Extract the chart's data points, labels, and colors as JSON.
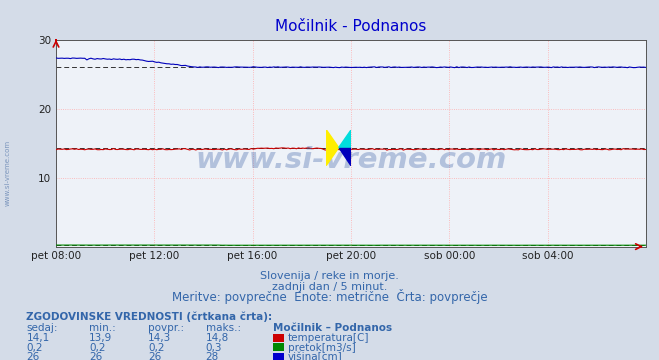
{
  "title": "Močilnik - Podnanos",
  "bg_color": "#d4dce8",
  "plot_bg_color": "#eef2f8",
  "xlabel": "",
  "ylabel": "",
  "ylim": [
    0,
    30
  ],
  "yticks": [
    0,
    10,
    20,
    30
  ],
  "xtick_labels": [
    "pet 08:00",
    "pet 12:00",
    "pet 16:00",
    "pet 20:00",
    "sob 00:00",
    "sob 04:00"
  ],
  "xtick_positions": [
    0,
    4,
    8,
    12,
    16,
    20
  ],
  "subtitle1": "Slovenija / reke in morje.",
  "subtitle2": "zadnji dan / 5 minut.",
  "subtitle3": "Meritve: povprečne  Enote: metrične  Črta: povprečje",
  "table_title": "ZGODOVINSKE VREDNOSTI (črtkana črta):",
  "table_header_cols": [
    "sedaj:",
    "min.:",
    "povpr.:",
    "maks.:",
    "Močilnik – Podnanos"
  ],
  "table_rows": [
    [
      "14,1",
      "13,9",
      "14,3",
      "14,8",
      "temperatura[C]"
    ],
    [
      "0,2",
      "0,2",
      "0,2",
      "0,3",
      "pretok[m3/s]"
    ],
    [
      "26",
      "26",
      "26",
      "28",
      "višina[cm]"
    ]
  ],
  "row_colors": [
    "#cc0000",
    "#008800",
    "#0000cc"
  ],
  "temp_avg": 14.3,
  "flow_avg": 0.2,
  "height_avg": 26.0,
  "watermark": "www.si-vreme.com",
  "watermark_color": "#4466aa",
  "watermark_alpha": 0.35,
  "side_label": "www.si-vreme.com",
  "title_color": "#0000cc",
  "subtitle_color": "#3366aa",
  "table_color": "#3366aa",
  "n_points": 288,
  "temp_color": "#cc0000",
  "flow_color": "#008800",
  "height_color": "#0000bb",
  "grid_color": "#ffaaaa",
  "arrow_color": "#cc0000"
}
